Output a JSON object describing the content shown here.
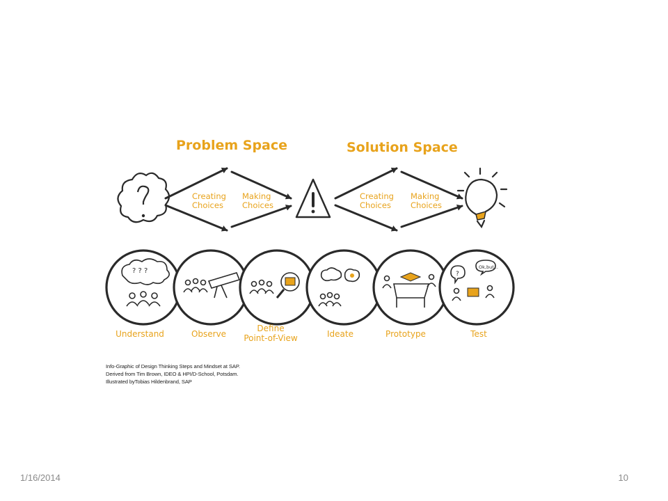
{
  "diagram": {
    "problem_space": "Problem Space",
    "solution_space": "Solution Space",
    "problem_choices": {
      "creating": [
        "Creating",
        "Choices"
      ],
      "making": [
        "Making",
        "Choices"
      ]
    },
    "solution_choices": {
      "creating": [
        "Creating",
        "Choices"
      ],
      "making": [
        "Making",
        "Choices"
      ]
    },
    "steps": [
      {
        "label": [
          "Understand"
        ]
      },
      {
        "label": [
          "Observe"
        ]
      },
      {
        "label": [
          "Define",
          "Point-of-View"
        ]
      },
      {
        "label": [
          "Ideate"
        ]
      },
      {
        "label": [
          "Prototype"
        ]
      },
      {
        "label": [
          "Test"
        ]
      }
    ],
    "icons": [
      "cloud-question-icon",
      "warning-triangle-icon",
      "lightbulb-icon"
    ],
    "accent_color": "#e8a31c",
    "ink_color": "#2a2a2a"
  },
  "caption": {
    "line1": "Info-Graphic of Design Thinking Steps and Mindset at SAP.",
    "line2": "Derived from Tim Brown, IDEO &  HPI/D-School, Potsdam.",
    "line3": "Illustrated byTobias Hildenbrand, SAP"
  },
  "footer": {
    "date": "1/16/2014",
    "page": "10"
  }
}
